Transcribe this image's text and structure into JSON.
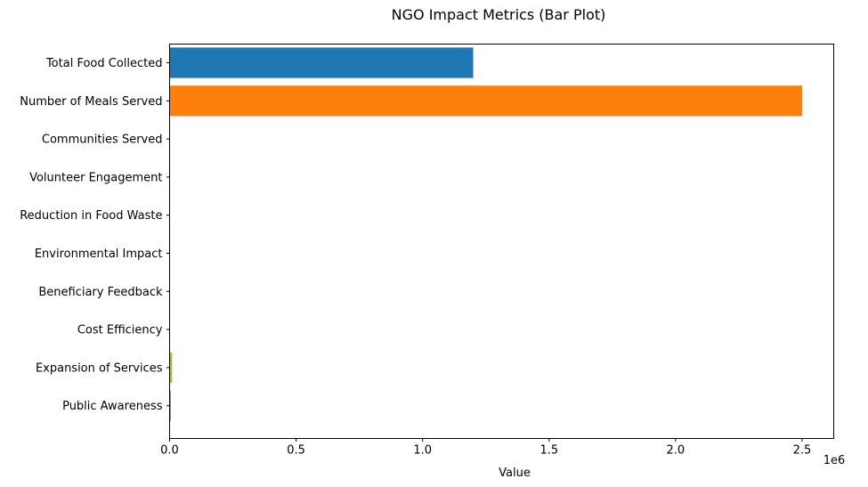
{
  "chart_data": {
    "type": "bar",
    "orientation": "horizontal",
    "title": "NGO Impact Metrics (Bar Plot)",
    "xlabel": "Value",
    "ylabel": "",
    "offset_text": "1e6",
    "xlim": [
      0,
      2625000
    ],
    "x_ticks": [
      0,
      500000,
      1000000,
      1500000,
      2000000,
      2500000
    ],
    "x_tick_labels": [
      "0.0",
      "0.5",
      "1.0",
      "1.5",
      "2.0",
      "2.5"
    ],
    "categories": [
      "Total Food Collected",
      "Number of Meals Served",
      "Communities Served",
      "Volunteer Engagement",
      "Reduction in Food Waste",
      "Environmental Impact",
      "Beneficiary Feedback",
      "Cost Efficiency",
      "Expansion of Services",
      "Public Awareness"
    ],
    "values": [
      1200000,
      2500000,
      150,
      500,
      30,
      50,
      90,
      85,
      10000,
      5000
    ],
    "colors": [
      "#1f77b4",
      "#ff7f0e",
      "#2ca02c",
      "#d62728",
      "#9467bd",
      "#8c564b",
      "#e377c2",
      "#7f7f7f",
      "#bcbd22",
      "#17becf"
    ],
    "grid": false,
    "legend": "none"
  }
}
